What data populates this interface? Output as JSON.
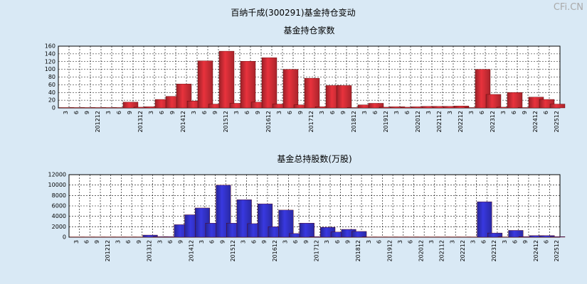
{
  "title": "百纳千成(300291)基金持仓变动",
  "watermark": "CFi.CN",
  "chart_data": [
    {
      "type": "bar",
      "title": "基金持仓家数",
      "color": "#e8323c",
      "grid": true,
      "categories": [
        "3",
        "6",
        "9",
        "201212",
        "3",
        "6",
        "9",
        "201312",
        "3",
        "6",
        "9",
        "201412",
        "3",
        "6",
        "9",
        "201512",
        "3",
        "6",
        "9",
        "201612",
        "3",
        "6",
        "9",
        "201712",
        "3",
        "6",
        "9",
        "201812",
        "3",
        "6",
        "201912",
        "3",
        "6",
        "202012",
        "3",
        "202112",
        "3",
        "202212",
        "3",
        "6",
        "202312",
        "3",
        "6",
        "9",
        "202412",
        "6",
        "202512"
      ],
      "values": [
        1,
        1,
        1,
        1,
        1,
        1,
        15,
        2,
        3,
        22,
        30,
        62,
        18,
        122,
        10,
        147,
        12,
        121,
        15,
        130,
        10,
        100,
        8,
        77,
        3,
        58,
        58,
        1,
        8,
        12,
        2,
        3,
        2,
        3,
        4,
        4,
        4,
        5,
        1,
        100,
        35,
        2,
        40,
        1,
        28,
        22,
        10
      ],
      "ylim": [
        0,
        160
      ],
      "yticks": [
        0,
        20,
        40,
        60,
        80,
        100,
        120,
        140,
        160
      ]
    },
    {
      "type": "bar",
      "title": "基金总持股数(万股)",
      "color": "#3838e0",
      "grid": true,
      "categories": [
        "3",
        "6",
        "9",
        "201212",
        "3",
        "6",
        "9",
        "201312",
        "3",
        "6",
        "9",
        "201412",
        "3",
        "6",
        "9",
        "201512",
        "3",
        "6",
        "9",
        "201612",
        "3",
        "6",
        "9",
        "201712",
        "3",
        "6",
        "9",
        "201812",
        "3",
        "6",
        "201912",
        "3",
        "6",
        "202012",
        "3",
        "202112",
        "3",
        "202212",
        "3",
        "6",
        "202312",
        "3",
        "6",
        "9",
        "202412",
        "6",
        "202512"
      ],
      "values": [
        50,
        50,
        50,
        50,
        50,
        50,
        50,
        400,
        100,
        100,
        2400,
        4300,
        5600,
        2700,
        10000,
        2700,
        7200,
        2600,
        6400,
        2000,
        5200,
        700,
        2700,
        100,
        1900,
        1000,
        1500,
        1100,
        50,
        50,
        50,
        50,
        50,
        50,
        50,
        50,
        50,
        50,
        50,
        6800,
        800,
        50,
        1300,
        100,
        300,
        300,
        100
      ],
      "ylim": [
        0,
        12000
      ],
      "yticks": [
        0,
        2000,
        4000,
        6000,
        8000,
        10000,
        12000
      ]
    }
  ]
}
